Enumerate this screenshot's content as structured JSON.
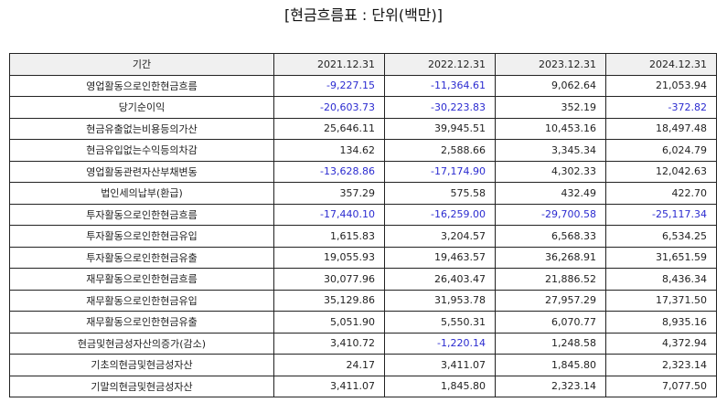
{
  "title": "[현금흐름표 : 단위(백만)]",
  "columns": {
    "label": "기간",
    "years": [
      "2021.12.31",
      "2022.12.31",
      "2023.12.31",
      "2024.12.31"
    ]
  },
  "colors": {
    "negative": "#2b2bd0",
    "positive": "#222222",
    "header_bg": "#f0f0f0"
  },
  "rows": [
    {
      "label": "영업활동으로인한현금흐름",
      "values": [
        "-9,227.15",
        "-11,364.61",
        "9,062.64",
        "21,053.94"
      ]
    },
    {
      "label": "당기순이익",
      "values": [
        "-20,603.73",
        "-30,223.83",
        "352.19",
        "-372.82"
      ]
    },
    {
      "label": "현금유출없는비용등의가산",
      "values": [
        "25,646.11",
        "39,945.51",
        "10,453.16",
        "18,497.48"
      ]
    },
    {
      "label": "현금유입없는수익등의차감",
      "values": [
        "134.62",
        "2,588.66",
        "3,345.34",
        "6,024.79"
      ]
    },
    {
      "label": "영업활동관련자산부채변동",
      "values": [
        "-13,628.86",
        "-17,174.90",
        "4,302.33",
        "12,042.63"
      ]
    },
    {
      "label": "법인세의납부(환급)",
      "values": [
        "357.29",
        "575.58",
        "432.49",
        "422.70"
      ]
    },
    {
      "label": "투자활동으로인한현금흐름",
      "values": [
        "-17,440.10",
        "-16,259.00",
        "-29,700.58",
        "-25,117.34"
      ]
    },
    {
      "label": "투자활동으로인한현금유입",
      "values": [
        "1,615.83",
        "3,204.57",
        "6,568.33",
        "6,534.25"
      ]
    },
    {
      "label": "투자활동으로인한현금유출",
      "values": [
        "19,055.93",
        "19,463.57",
        "36,268.91",
        "31,651.59"
      ]
    },
    {
      "label": "재무활동으로인한현금흐름",
      "values": [
        "30,077.96",
        "26,403.47",
        "21,886.52",
        "8,436.34"
      ]
    },
    {
      "label": "재무활동으로인한현금유입",
      "values": [
        "35,129.86",
        "31,953.78",
        "27,957.29",
        "17,371.50"
      ]
    },
    {
      "label": "재무활동으로인한현금유출",
      "values": [
        "5,051.90",
        "5,550.31",
        "6,070.77",
        "8,935.16"
      ]
    },
    {
      "label": "현금및현금성자산의증가(감소)",
      "values": [
        "3,410.72",
        "-1,220.14",
        "1,248.58",
        "4,372.94"
      ]
    },
    {
      "label": "기초의현금및현금성자산",
      "values": [
        "24.17",
        "3,411.07",
        "1,845.80",
        "2,323.14"
      ]
    },
    {
      "label": "기말의현금및현금성자산",
      "values": [
        "3,411.07",
        "1,845.80",
        "2,323.14",
        "7,077.50"
      ]
    }
  ]
}
